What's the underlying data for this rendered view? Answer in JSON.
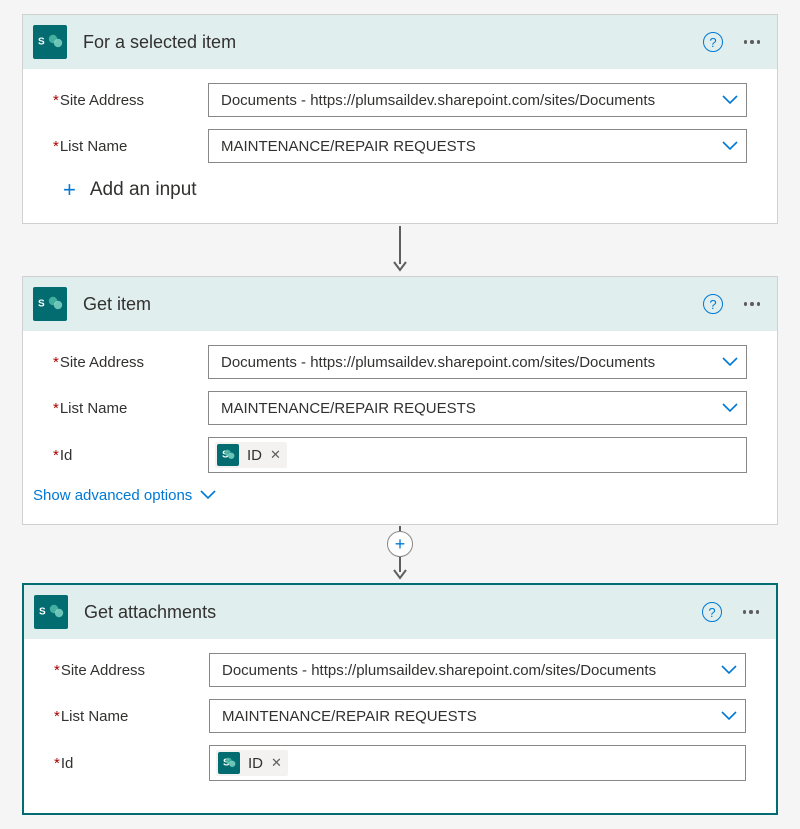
{
  "colors": {
    "brand": "#036c70",
    "header_bg": "#e0eeee",
    "link": "#0078d4",
    "required": "#a80000",
    "border": "#8a8886"
  },
  "cards": [
    {
      "title": "For a selected item",
      "selected": false,
      "fields": [
        {
          "label": "Site Address",
          "required": true,
          "type": "select",
          "value": "Documents - https://plumsaildev.sharepoint.com/sites/Documents"
        },
        {
          "label": "List Name",
          "required": true,
          "type": "select",
          "value": "MAINTENANCE/REPAIR REQUESTS"
        }
      ],
      "footer": {
        "type": "add_input",
        "label": "Add an input"
      },
      "connector_after": {
        "type": "arrow"
      }
    },
    {
      "title": "Get item",
      "selected": false,
      "fields": [
        {
          "label": "Site Address",
          "required": true,
          "type": "select",
          "value": "Documents - https://plumsaildev.sharepoint.com/sites/Documents"
        },
        {
          "label": "List Name",
          "required": true,
          "type": "select",
          "value": "MAINTENANCE/REPAIR REQUESTS"
        },
        {
          "label": "Id",
          "required": true,
          "type": "token",
          "token_label": "ID"
        }
      ],
      "footer": {
        "type": "advanced",
        "label": "Show advanced options"
      },
      "connector_after": {
        "type": "arrow_plus"
      }
    },
    {
      "title": "Get attachments",
      "selected": true,
      "fields": [
        {
          "label": "Site Address",
          "required": true,
          "type": "select",
          "value": "Documents - https://plumsaildev.sharepoint.com/sites/Documents"
        },
        {
          "label": "List Name",
          "required": true,
          "type": "select",
          "value": "MAINTENANCE/REPAIR REQUESTS"
        },
        {
          "label": "Id",
          "required": true,
          "type": "token",
          "token_label": "ID"
        }
      ],
      "footer": null,
      "connector_after": null
    }
  ]
}
